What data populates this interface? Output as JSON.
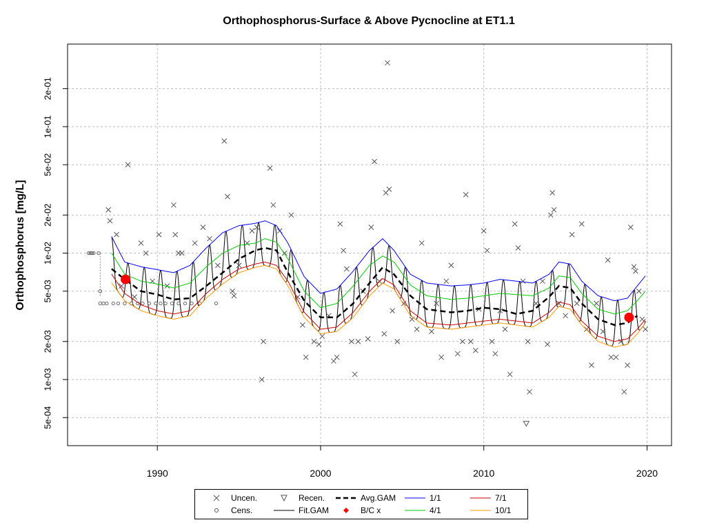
{
  "chart_data": {
    "type": "line",
    "title": "Orthophosphorus-Surface & Above Pycnocline at ET1.1",
    "ylabel": "Orthophosphorus [mg/L]",
    "xlabel": "",
    "xlim": [
      1984.5,
      2021.5
    ],
    "ylim": [
      0.0003,
      0.45
    ],
    "yscale": "log",
    "grid": true,
    "x_ticks": [
      1990,
      2000,
      2010,
      2020
    ],
    "x_tick_labels": [
      "1990",
      "2000",
      "2010",
      "2020"
    ],
    "y_ticks": [
      0.0005,
      0.001,
      0.002,
      0.005,
      0.01,
      0.02,
      0.05,
      0.1,
      0.2
    ],
    "y_tick_labels": [
      "5e-04",
      "1e-03",
      "2e-03",
      "5e-03",
      "1e-02",
      "2e-02",
      "5e-02",
      "1e-01",
      "2e-01"
    ],
    "legend_position": "bottom",
    "legend": [
      {
        "label": "Uncen.",
        "symbol": "x",
        "color": "#555555"
      },
      {
        "label": "Cens.",
        "symbol": "circle",
        "color": "#555555"
      },
      {
        "label": "Recen.",
        "symbol": "triangle-down",
        "color": "#555555"
      },
      {
        "label": "Fit.GAM",
        "symbol": "line",
        "color": "#000000"
      },
      {
        "label": "Avg.GAM",
        "symbol": "dashed",
        "color": "#000000"
      },
      {
        "label": "B/C x",
        "symbol": "dot",
        "color": "#ff0000"
      },
      {
        "label": "1/1",
        "symbol": "line",
        "color": "#0000ff"
      },
      {
        "label": "4/1",
        "symbol": "line",
        "color": "#00cc00"
      },
      {
        "label": "7/1",
        "symbol": "line",
        "color": "#cc0000"
      },
      {
        "label": "10/1",
        "symbol": "line",
        "color": "#ff9900"
      }
    ],
    "series": [
      {
        "name": "Avg.GAM",
        "color": "#000000",
        "style": "dashed",
        "x": [
          1987.2,
          1988.0,
          1989.0,
          1990.0,
          1991.0,
          1992.0,
          1993.0,
          1994.0,
          1995.0,
          1996.0,
          1996.6,
          1997.3,
          1998.0,
          1999.0,
          2000.0,
          2001.0,
          2002.0,
          2003.0,
          2003.8,
          2004.5,
          2005.5,
          2006.5,
          2008.0,
          2009.0,
          2010.0,
          2011.0,
          2012.0,
          2013.0,
          2014.0,
          2014.6,
          2015.3,
          2016.0,
          2017.0,
          2018.0,
          2018.8,
          2019.4
        ],
        "y": [
          0.0075,
          0.0062,
          0.005,
          0.0047,
          0.0043,
          0.0044,
          0.0055,
          0.007,
          0.009,
          0.0105,
          0.011,
          0.0105,
          0.007,
          0.0042,
          0.0031,
          0.0031,
          0.004,
          0.0058,
          0.0077,
          0.0068,
          0.0046,
          0.0036,
          0.0034,
          0.0035,
          0.0037,
          0.0036,
          0.0033,
          0.0035,
          0.0045,
          0.0055,
          0.0053,
          0.004,
          0.003,
          0.0027,
          0.0028,
          0.0032
        ]
      },
      {
        "name": "1/1",
        "color": "#0000ff",
        "style": "solid",
        "x": [
          1987.2,
          1988.0,
          1989.0,
          1990.0,
          1991.0,
          1992.0,
          1993.0,
          1994.0,
          1995.0,
          1996.0,
          1996.6,
          1997.3,
          1998.0,
          1999.0,
          2000.0,
          2001.0,
          2002.0,
          2003.0,
          2003.8,
          2004.5,
          2005.5,
          2006.5,
          2008.0,
          2009.0,
          2010.0,
          2011.0,
          2012.0,
          2013.0,
          2014.0,
          2014.6,
          2015.3,
          2016.0,
          2017.0,
          2018.0,
          2018.8,
          2019.4,
          2019.9
        ],
        "y": [
          0.0135,
          0.0085,
          0.0078,
          0.0074,
          0.007,
          0.008,
          0.011,
          0.0145,
          0.0165,
          0.0172,
          0.018,
          0.0165,
          0.012,
          0.0065,
          0.0048,
          0.0052,
          0.0072,
          0.0105,
          0.013,
          0.0105,
          0.0068,
          0.0058,
          0.0055,
          0.0056,
          0.0058,
          0.0062,
          0.006,
          0.0058,
          0.0068,
          0.0085,
          0.0082,
          0.006,
          0.0046,
          0.0042,
          0.0044,
          0.0055,
          0.0066
        ]
      },
      {
        "name": "4/1",
        "color": "#00cc00",
        "style": "solid",
        "x": [
          1987.2,
          1988.0,
          1989.0,
          1990.0,
          1991.0,
          1992.0,
          1993.0,
          1994.0,
          1995.0,
          1996.0,
          1996.6,
          1997.3,
          1998.0,
          1999.0,
          2000.0,
          2001.0,
          2002.0,
          2003.0,
          2003.8,
          2004.5,
          2005.5,
          2006.5,
          2008.0,
          2009.0,
          2010.0,
          2011.0,
          2012.0,
          2013.0,
          2014.0,
          2014.6,
          2015.3,
          2016.0,
          2017.0,
          2018.0,
          2018.8,
          2019.4,
          2019.9
        ],
        "y": [
          0.01,
          0.0068,
          0.006,
          0.0057,
          0.0053,
          0.0058,
          0.0078,
          0.01,
          0.0115,
          0.012,
          0.013,
          0.0122,
          0.009,
          0.005,
          0.0037,
          0.004,
          0.0055,
          0.008,
          0.0095,
          0.0085,
          0.0056,
          0.0046,
          0.0043,
          0.0044,
          0.0046,
          0.0048,
          0.0047,
          0.0046,
          0.0053,
          0.0066,
          0.0064,
          0.0048,
          0.0036,
          0.0033,
          0.0035,
          0.0042,
          0.005
        ]
      },
      {
        "name": "7/1",
        "color": "#cc0000",
        "style": "solid",
        "x": [
          1987.2,
          1988.0,
          1989.0,
          1990.0,
          1991.0,
          1992.0,
          1993.0,
          1994.0,
          1995.0,
          1996.0,
          1996.6,
          1997.3,
          1998.0,
          1999.0,
          2000.0,
          2001.0,
          2002.0,
          2003.0,
          2003.8,
          2004.5,
          2005.5,
          2006.5,
          2008.0,
          2009.0,
          2010.0,
          2011.0,
          2012.0,
          2013.0,
          2014.0,
          2014.6,
          2015.3,
          2016.0,
          2017.0,
          2018.0,
          2018.8,
          2019.4,
          2019.9
        ],
        "y": [
          0.0068,
          0.0048,
          0.0039,
          0.0035,
          0.0033,
          0.0035,
          0.0048,
          0.0062,
          0.0075,
          0.0082,
          0.0085,
          0.008,
          0.006,
          0.0034,
          0.0025,
          0.0026,
          0.0034,
          0.005,
          0.0063,
          0.0056,
          0.0035,
          0.0028,
          0.0027,
          0.0028,
          0.0029,
          0.003,
          0.0029,
          0.0028,
          0.0034,
          0.0041,
          0.0039,
          0.0029,
          0.0022,
          0.002,
          0.0021,
          0.0025,
          0.003
        ]
      },
      {
        "name": "10/1",
        "color": "#ff9900",
        "style": "solid",
        "x": [
          1987.2,
          1988.0,
          1989.0,
          1990.0,
          1991.0,
          1992.0,
          1993.0,
          1994.0,
          1995.0,
          1996.0,
          1996.6,
          1997.3,
          1998.0,
          1999.0,
          2000.0,
          2001.0,
          2002.0,
          2003.0,
          2003.8,
          2004.5,
          2005.5,
          2006.5,
          2008.0,
          2009.0,
          2010.0,
          2011.0,
          2012.0,
          2013.0,
          2014.0,
          2014.6,
          2015.3,
          2016.0,
          2017.0,
          2018.0,
          2018.8,
          2019.4,
          2019.9
        ],
        "y": [
          0.0058,
          0.0042,
          0.0035,
          0.0032,
          0.003,
          0.0032,
          0.0044,
          0.0057,
          0.007,
          0.0077,
          0.008,
          0.0075,
          0.0055,
          0.0031,
          0.0023,
          0.0024,
          0.0031,
          0.0046,
          0.0058,
          0.0052,
          0.0032,
          0.0026,
          0.0025,
          0.0026,
          0.0027,
          0.0028,
          0.0027,
          0.0026,
          0.0031,
          0.0038,
          0.0036,
          0.0027,
          0.002,
          0.0018,
          0.0019,
          0.0023,
          0.0028
        ]
      }
    ],
    "uncensored_points": [
      [
        1987.0,
        0.022
      ],
      [
        1987.1,
        0.018
      ],
      [
        1987.5,
        0.014
      ],
      [
        1987.8,
        0.0055
      ],
      [
        1988.2,
        0.05
      ],
      [
        1988.6,
        0.0045
      ],
      [
        1989.0,
        0.012
      ],
      [
        1989.3,
        0.01
      ],
      [
        1989.7,
        0.006
      ],
      [
        1990.1,
        0.014
      ],
      [
        1990.6,
        0.0055
      ],
      [
        1991.0,
        0.024
      ],
      [
        1991.1,
        0.014
      ],
      [
        1991.3,
        0.01
      ],
      [
        1991.5,
        0.01
      ],
      [
        1992.3,
        0.012
      ],
      [
        1992.8,
        0.016
      ],
      [
        1993.2,
        0.013
      ],
      [
        1993.7,
        0.008
      ],
      [
        1994.1,
        0.077
      ],
      [
        1994.3,
        0.028
      ],
      [
        1994.6,
        0.005
      ],
      [
        1994.7,
        0.0046
      ],
      [
        1995.0,
        0.008
      ],
      [
        1995.5,
        0.012
      ],
      [
        1995.8,
        0.015
      ],
      [
        1996.1,
        0.016
      ],
      [
        1996.4,
        0.001
      ],
      [
        1996.5,
        0.002
      ],
      [
        1996.9,
        0.047
      ],
      [
        1997.1,
        0.024
      ],
      [
        1997.5,
        0.015
      ],
      [
        1997.8,
        0.01
      ],
      [
        1998.2,
        0.02
      ],
      [
        1998.6,
        0.0045
      ],
      [
        1998.9,
        0.0027
      ],
      [
        1999.1,
        0.0015
      ],
      [
        1999.6,
        0.002
      ],
      [
        1999.9,
        0.0019
      ],
      [
        2000.1,
        0.0022
      ],
      [
        2000.5,
        0.0032
      ],
      [
        2000.8,
        0.0014
      ],
      [
        2001.0,
        0.0015
      ],
      [
        2001.2,
        0.017
      ],
      [
        2001.4,
        0.0105
      ],
      [
        2001.6,
        0.0075
      ],
      [
        2001.9,
        0.002
      ],
      [
        2002.1,
        0.0011
      ],
      [
        2002.3,
        0.002
      ],
      [
        2002.6,
        0.005
      ],
      [
        2002.9,
        0.0021
      ],
      [
        2003.1,
        0.016
      ],
      [
        2003.3,
        0.053
      ],
      [
        2003.6,
        0.006
      ],
      [
        2003.9,
        0.0023
      ],
      [
        2004.0,
        0.03
      ],
      [
        2004.1,
        0.32
      ],
      [
        2004.2,
        0.032
      ],
      [
        2004.4,
        0.0035
      ],
      [
        2004.7,
        0.002
      ],
      [
        2005.1,
        0.004
      ],
      [
        2005.6,
        0.003
      ],
      [
        2005.9,
        0.0025
      ],
      [
        2006.2,
        0.012
      ],
      [
        2006.8,
        0.0024
      ],
      [
        2007.1,
        0.004
      ],
      [
        2007.4,
        0.0015
      ],
      [
        2007.7,
        0.006
      ],
      [
        2008.0,
        0.008
      ],
      [
        2008.4,
        0.0016
      ],
      [
        2008.7,
        0.002
      ],
      [
        2008.9,
        0.029
      ],
      [
        2009.2,
        0.002
      ],
      [
        2009.5,
        0.0017
      ],
      [
        2009.7,
        0.0036
      ],
      [
        2010.0,
        0.015
      ],
      [
        2010.2,
        0.0105
      ],
      [
        2010.5,
        0.002
      ],
      [
        2010.7,
        0.0016
      ],
      [
        2011.0,
        0.0035
      ],
      [
        2011.3,
        0.0025
      ],
      [
        2011.6,
        0.0011
      ],
      [
        2011.9,
        0.017
      ],
      [
        2012.1,
        0.011
      ],
      [
        2012.4,
        0.006
      ],
      [
        2012.7,
        0.002
      ],
      [
        2012.8,
        0.0008
      ],
      [
        2013.2,
        0.004
      ],
      [
        2013.6,
        0.006
      ],
      [
        2013.9,
        0.0019
      ],
      [
        2014.1,
        0.02
      ],
      [
        2014.2,
        0.03
      ],
      [
        2014.3,
        0.022
      ],
      [
        2014.6,
        0.004
      ],
      [
        2015.0,
        0.0032
      ],
      [
        2015.4,
        0.014
      ],
      [
        2015.7,
        0.004
      ],
      [
        2016.0,
        0.017
      ],
      [
        2016.3,
        0.0025
      ],
      [
        2016.6,
        0.0013
      ],
      [
        2016.9,
        0.004
      ],
      [
        2017.3,
        0.0024
      ],
      [
        2017.6,
        0.0088
      ],
      [
        2017.8,
        0.0015
      ],
      [
        2018.1,
        0.0015
      ],
      [
        2018.4,
        0.002
      ],
      [
        2018.6,
        0.0008
      ],
      [
        2018.8,
        0.0013
      ],
      [
        2019.0,
        0.016
      ],
      [
        2019.2,
        0.0078
      ],
      [
        2019.3,
        0.0072
      ],
      [
        2019.5,
        0.005
      ],
      [
        2019.7,
        0.003
      ],
      [
        2019.9,
        0.0025
      ]
    ],
    "censored_points": [
      [
        1985.8,
        0.01
      ],
      [
        1985.9,
        0.01
      ],
      [
        1986.0,
        0.01
      ],
      [
        1986.1,
        0.01
      ],
      [
        1986.4,
        0.01
      ],
      [
        1986.5,
        0.005
      ],
      [
        1986.5,
        0.004
      ],
      [
        1986.7,
        0.004
      ],
      [
        1986.9,
        0.004
      ],
      [
        1987.3,
        0.004
      ],
      [
        1987.6,
        0.004
      ],
      [
        1988.0,
        0.004
      ],
      [
        1988.4,
        0.004
      ],
      [
        1988.8,
        0.004
      ],
      [
        1989.1,
        0.004
      ],
      [
        1989.5,
        0.004
      ],
      [
        1989.9,
        0.004
      ],
      [
        1990.2,
        0.004
      ],
      [
        1990.5,
        0.004
      ],
      [
        1990.9,
        0.004
      ],
      [
        1991.3,
        0.004
      ],
      [
        1991.7,
        0.004
      ],
      [
        1992.1,
        0.004
      ],
      [
        1992.6,
        0.004
      ],
      [
        1993.6,
        0.004
      ]
    ],
    "recensored_points": [
      [
        2012.6,
        0.00045
      ]
    ],
    "bc_points": [
      [
        1988.05,
        0.0062
      ],
      [
        2018.9,
        0.0031
      ]
    ]
  }
}
